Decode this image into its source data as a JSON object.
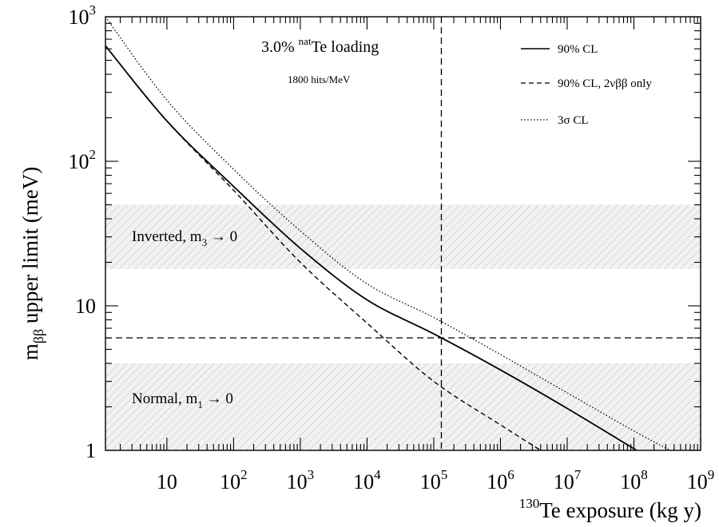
{
  "chart_data": {
    "type": "line",
    "x_scale": "log",
    "y_scale": "log",
    "xlim": [
      1.2,
      1000000000
    ],
    "ylim": [
      1,
      1000
    ],
    "xlabel_sup": "130",
    "xlabel": "Te exposure (kg y)",
    "ylabel_main": "m",
    "ylabel_sub": "ββ",
    "ylabel_rest": " upper limit (meV)",
    "x_tick_labels": [
      {
        "value": 10,
        "base": "10",
        "exp": ""
      },
      {
        "value": 100,
        "base": "10",
        "exp": "2"
      },
      {
        "value": 1000,
        "base": "10",
        "exp": "3"
      },
      {
        "value": 10000,
        "base": "10",
        "exp": "4"
      },
      {
        "value": 100000,
        "base": "10",
        "exp": "5"
      },
      {
        "value": 1000000,
        "base": "10",
        "exp": "6"
      },
      {
        "value": 10000000,
        "base": "10",
        "exp": "7"
      },
      {
        "value": 100000000,
        "base": "10",
        "exp": "8"
      },
      {
        "value": 1000000000,
        "base": "10",
        "exp": "9"
      }
    ],
    "y_tick_labels": [
      {
        "value": 1,
        "base": "1",
        "exp": ""
      },
      {
        "value": 10,
        "base": "10",
        "exp": ""
      },
      {
        "value": 100,
        "base": "10",
        "exp": "2"
      },
      {
        "value": 1000,
        "base": "10",
        "exp": "3"
      }
    ],
    "legend": {
      "placement": "top-right",
      "entries": [
        {
          "label": "90% CL",
          "style": "solid"
        },
        {
          "label": "90% CL, 2νββ only",
          "style": "dashed"
        },
        {
          "label": "3σ CL",
          "style": "dotted"
        }
      ]
    },
    "annotations": {
      "loading_prefix": "3.0% ",
      "loading_sup": "nat",
      "loading_suffix": "Te loading",
      "hits": "1800 hits/MeV"
    },
    "bands": [
      {
        "label_main": "Inverted, m",
        "label_sub": "3",
        "label_rest": " → 0",
        "y_range": [
          18,
          50
        ]
      },
      {
        "label_main": "Normal, m",
        "label_sub": "1",
        "label_rest": " → 0",
        "y_range": [
          1,
          4
        ]
      }
    ],
    "reference_lines": {
      "horizontal_y": 6,
      "vertical_x": 130000
    },
    "series": [
      {
        "name": "90% CL",
        "style": "solid",
        "points": [
          [
            1.2,
            630
          ],
          [
            10,
            190
          ],
          [
            100,
            67
          ],
          [
            1000,
            25
          ],
          [
            10000,
            11
          ],
          [
            100000,
            6.4
          ],
          [
            1000000,
            3.6
          ],
          [
            10000000,
            1.95
          ],
          [
            110000000,
            1.0
          ]
        ]
      },
      {
        "name": "90% CL, 2νββ only",
        "style": "dashed",
        "points": [
          [
            1.2,
            630
          ],
          [
            10,
            190
          ],
          [
            100,
            63
          ],
          [
            1000,
            20
          ],
          [
            10000,
            7.6
          ],
          [
            100000,
            3.0
          ],
          [
            1000000,
            1.5
          ],
          [
            4000000,
            1.0
          ]
        ]
      },
      {
        "name": "3σ CL",
        "style": "dotted",
        "points": [
          [
            1.2,
            1000
          ],
          [
            10,
            265
          ],
          [
            100,
            88
          ],
          [
            1000,
            33
          ],
          [
            10000,
            14.2
          ],
          [
            100000,
            8.3
          ],
          [
            1000000,
            4.6
          ],
          [
            10000000,
            2.5
          ],
          [
            100000000,
            1.36
          ],
          [
            350000000,
            1.0
          ]
        ]
      }
    ]
  }
}
